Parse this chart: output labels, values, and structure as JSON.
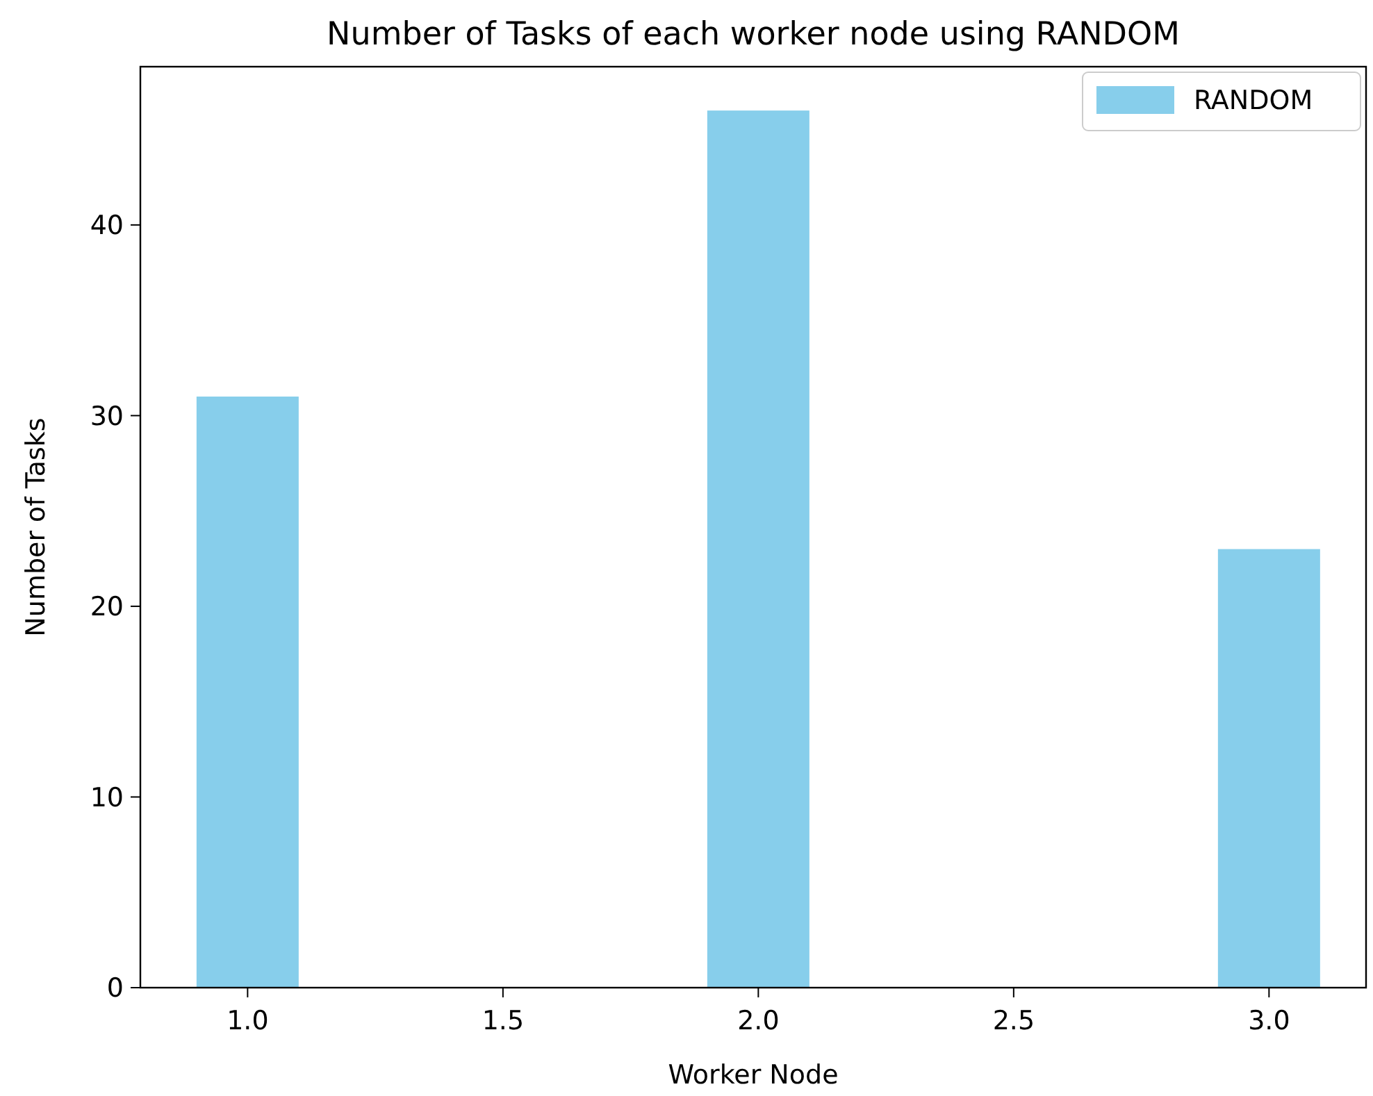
{
  "chart_data": {
    "type": "bar",
    "title": "Number of Tasks of each worker node using RANDOM",
    "xlabel": "Worker Node",
    "ylabel": "Number of Tasks",
    "x": [
      1,
      2,
      3
    ],
    "series": [
      {
        "name": "RANDOM",
        "color": "#87ceeb",
        "values": [
          31,
          46,
          23
        ]
      }
    ],
    "xlim": [
      0.79,
      3.19
    ],
    "xticks": [
      {
        "value": 1,
        "label": "1.0"
      },
      {
        "value": 1.5,
        "label": "1.5"
      },
      {
        "value": 2,
        "label": "2.0"
      },
      {
        "value": 2.5,
        "label": "2.5"
      },
      {
        "value": 3,
        "label": "3.0"
      }
    ],
    "ylim": [
      0,
      48.3
    ],
    "yticks": [
      0,
      10,
      20,
      30,
      40
    ],
    "grid": false,
    "legend": "top right"
  }
}
